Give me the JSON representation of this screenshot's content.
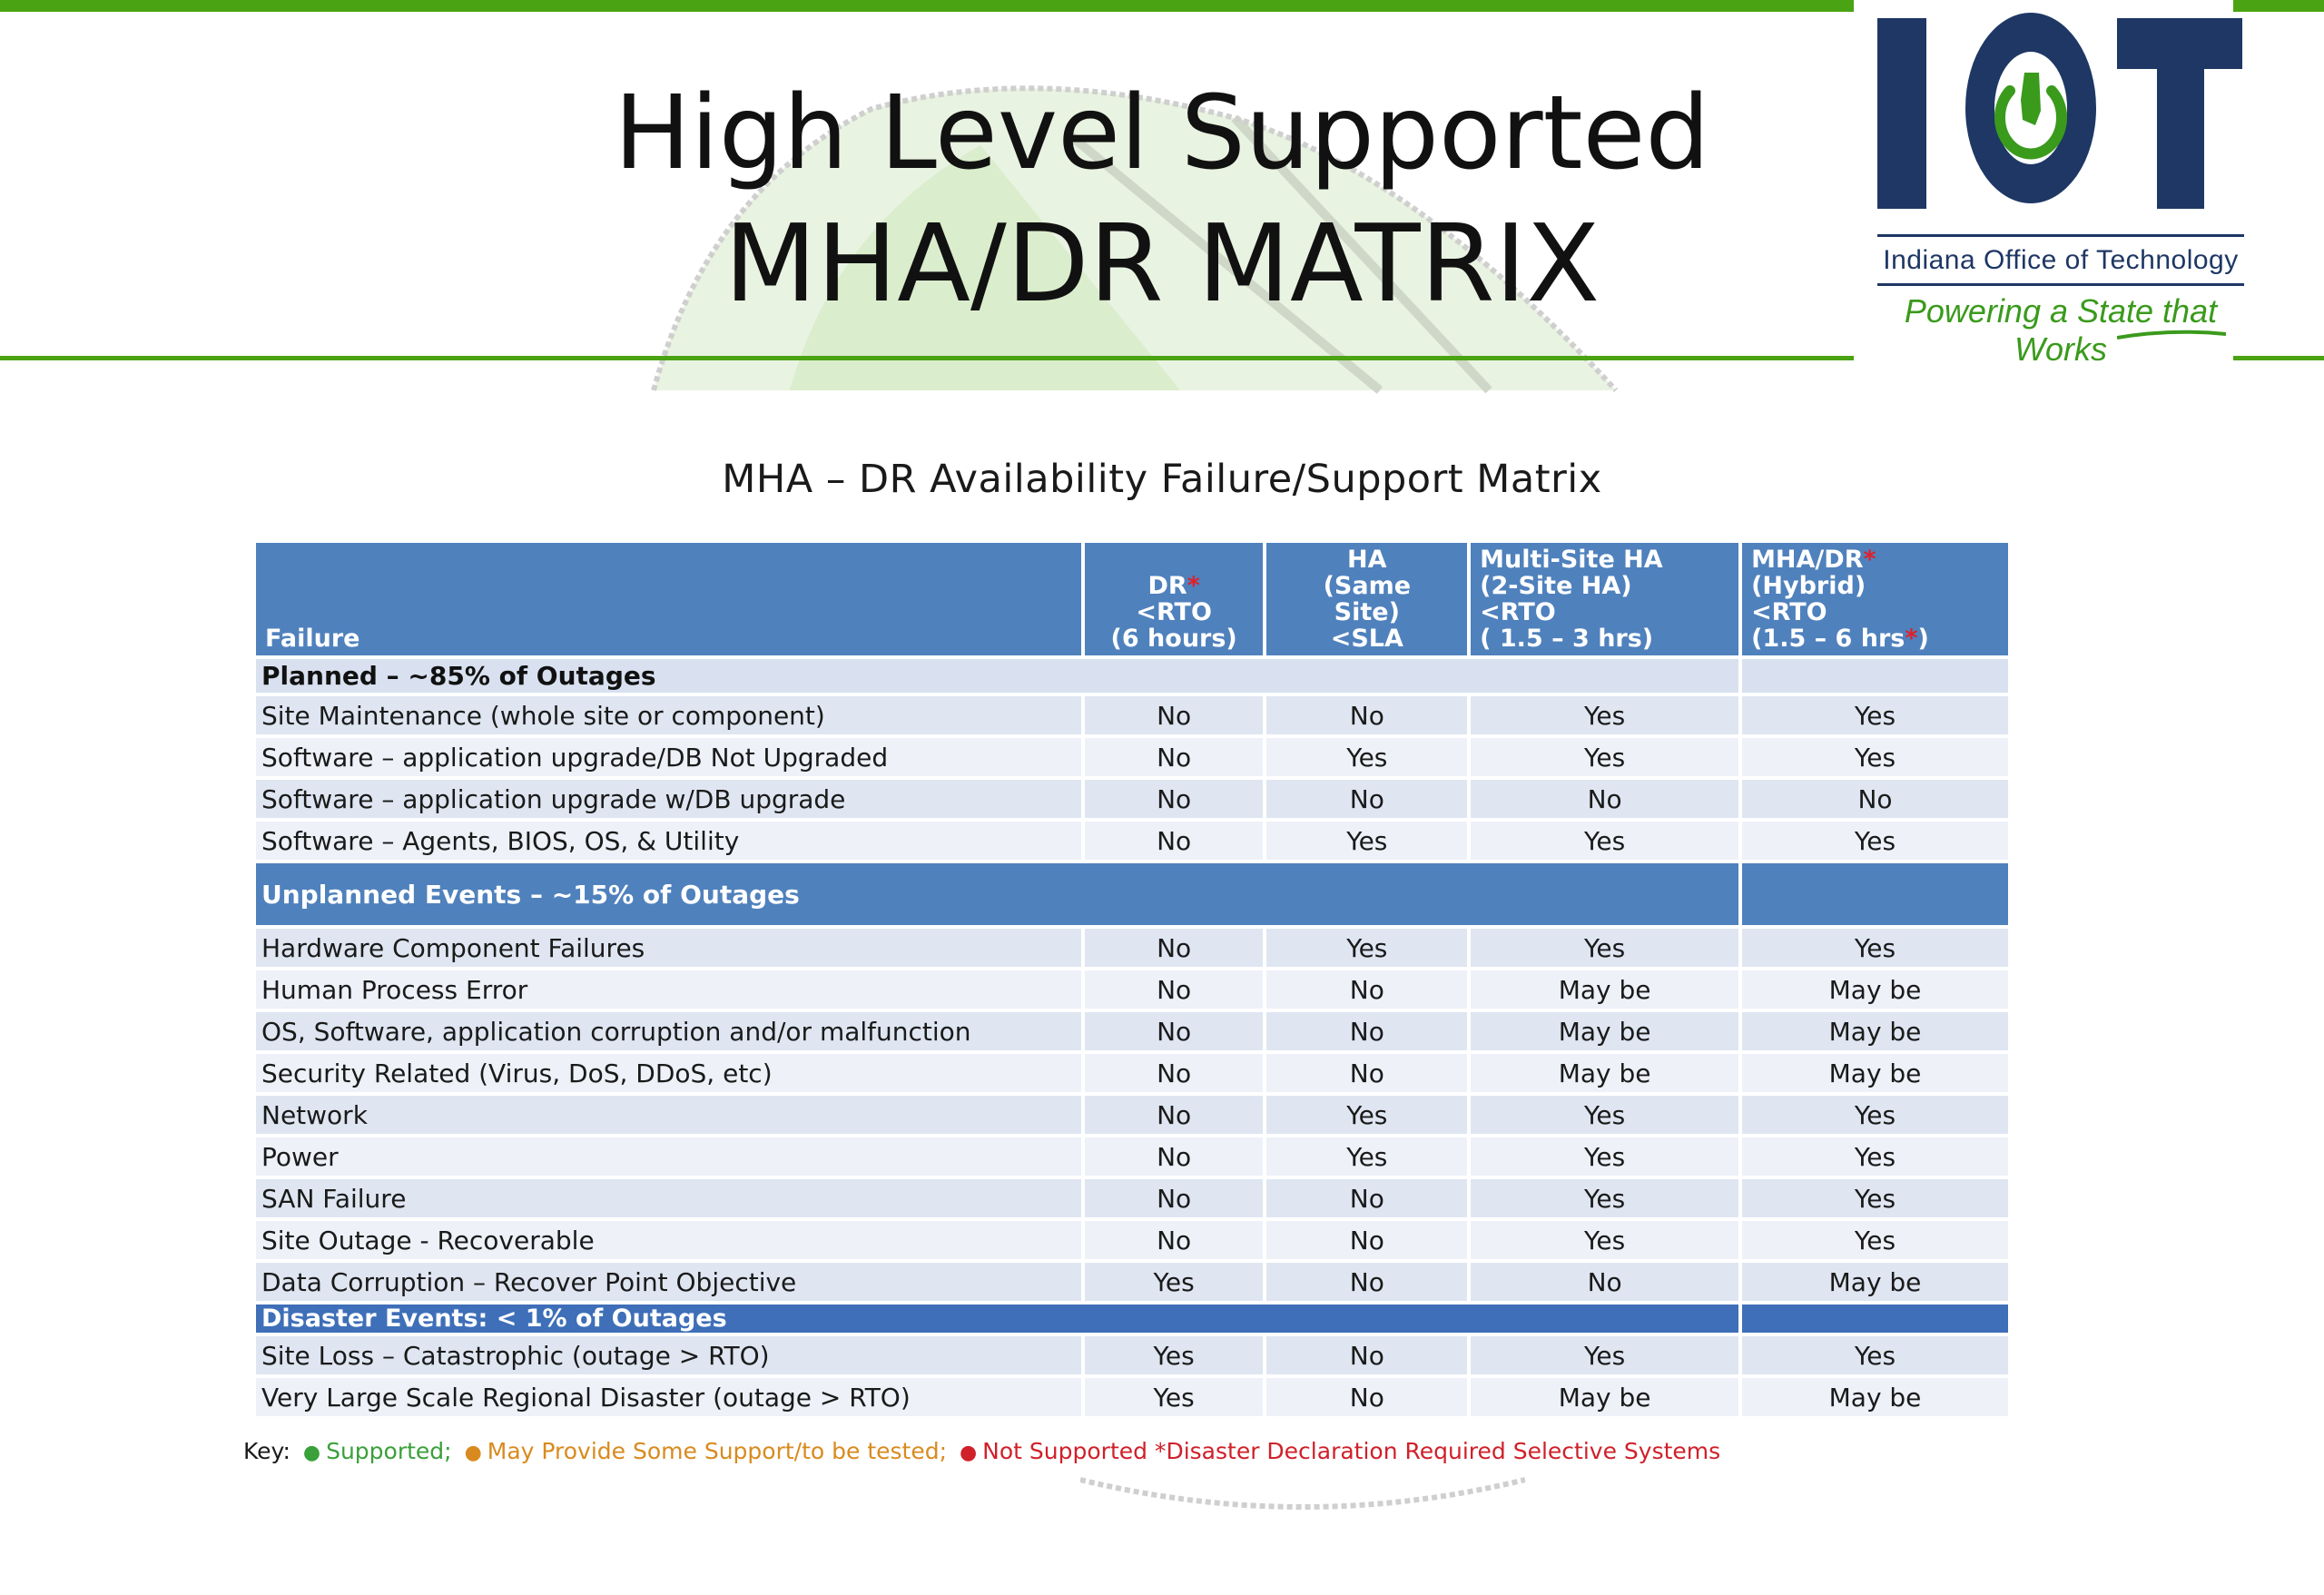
{
  "title": {
    "line1": "High Level Supported",
    "line2": "MHA/DR MATRIX"
  },
  "logo": {
    "letters": "IOT",
    "org": "Indiana Office of Technology",
    "tagline": "Powering a State that Works",
    "colors": {
      "navy": "#1e3764",
      "green": "#3a9a1c"
    }
  },
  "matrix_title": "MHA – DR Availability Failure/Support Matrix",
  "table": {
    "headers": {
      "failure": "Failure",
      "dr": [
        "DR*",
        "<RTO",
        "(6 hours)"
      ],
      "ha": [
        "HA",
        "(Same",
        "Site)",
        "<SLA"
      ],
      "multisite": [
        "Multi-Site HA",
        "(2-Site HA)",
        "<RTO",
        "( 1.5 – 3 hrs)"
      ],
      "mha": [
        "MHA/DR*",
        "(Hybrid)",
        "<RTO",
        "(1.5 – 6 hrs*)"
      ]
    },
    "sections": [
      {
        "label": "Planned – ~85% of Outages",
        "style": "light",
        "rows": [
          {
            "label": "Site Maintenance (whole site or component)",
            "values": [
              "No",
              "No",
              "Yes",
              "Yes"
            ]
          },
          {
            "label": "Software – application upgrade/DB Not Upgraded",
            "values": [
              "No",
              "Yes",
              "Yes",
              "Yes"
            ]
          },
          {
            "label": "Software – application upgrade w/DB upgrade",
            "values": [
              "No",
              "No",
              "No",
              "No"
            ]
          },
          {
            "label": "Software – Agents, BIOS, OS, & Utility",
            "values": [
              "No",
              "Yes",
              "Yes",
              "Yes"
            ]
          }
        ]
      },
      {
        "label": "Unplanned Events – ~15% of Outages",
        "style": "blue",
        "rows": [
          {
            "label": "Hardware Component Failures",
            "values": [
              "No",
              "Yes",
              "Yes",
              "Yes"
            ]
          },
          {
            "label": "Human Process Error",
            "values": [
              "No",
              "No",
              "May be",
              "May be"
            ]
          },
          {
            "label": "OS, Software, application corruption and/or malfunction",
            "values": [
              "No",
              "No",
              "May be",
              "May be"
            ]
          },
          {
            "label": "Security Related (Virus, DoS, DDoS, etc)",
            "values": [
              "No",
              "No",
              "May be",
              "May be"
            ]
          },
          {
            "label": "Network",
            "values": [
              "No",
              "Yes",
              "Yes",
              "Yes"
            ]
          },
          {
            "label": "Power",
            "values": [
              "No",
              "Yes",
              "Yes",
              "Yes"
            ]
          },
          {
            "label": "SAN Failure",
            "values": [
              "No",
              "No",
              "Yes",
              "Yes"
            ]
          },
          {
            "label": "Site Outage - Recoverable",
            "values": [
              "No",
              "No",
              "Yes",
              "Yes"
            ]
          },
          {
            "label": "Data Corruption – Recover Point Objective",
            "values": [
              "Yes",
              "No",
              "No",
              "May be"
            ]
          }
        ]
      },
      {
        "label": "Disaster Events: < 1% of Outages",
        "style": "dark",
        "rows": [
          {
            "label": "Site Loss – Catastrophic (outage > RTO)",
            "values": [
              "Yes",
              "No",
              "Yes",
              "Yes"
            ]
          },
          {
            "label": "Very Large Scale Regional Disaster (outage > RTO)",
            "values": [
              "Yes",
              "No",
              "May be",
              "May be"
            ]
          }
        ]
      }
    ]
  },
  "key": {
    "prefix": "Key:",
    "supported": "Supported;",
    "maybe": "May Provide Some Support/to be tested;",
    "not_supported": "Not Supported",
    "note": "*Disaster Declaration Required Selective Systems"
  },
  "colors": {
    "accent_green": "#4aa312",
    "header_blue": "#4f81bd",
    "yes": "#3aa03a",
    "no": "#d0202a",
    "maybe": "#d98a1e"
  }
}
